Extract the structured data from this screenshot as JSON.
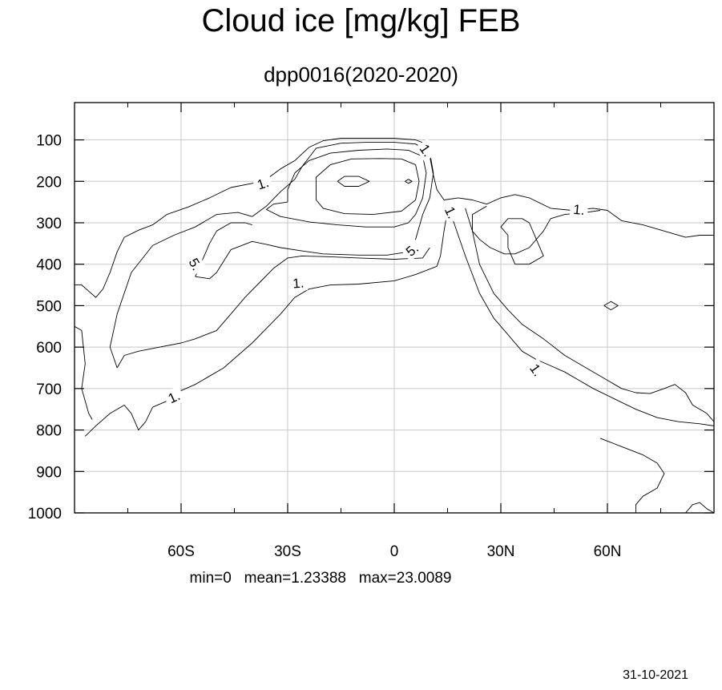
{
  "chart_data": {
    "type": "contour",
    "title": "Cloud ice [mg/kg] FEB",
    "subtitle": "dpp0016(2020-2020)",
    "x_tick_labels": [
      "60S",
      "30S",
      "0",
      "30N",
      "60N"
    ],
    "x_tick_values": [
      -60,
      -30,
      0,
      30,
      60
    ],
    "xlim": [
      -90,
      90
    ],
    "y_tick_labels": [
      "100",
      "200",
      "300",
      "400",
      "500",
      "600",
      "700",
      "800",
      "900",
      "1000"
    ],
    "y_tick_values": [
      100,
      200,
      300,
      400,
      500,
      600,
      700,
      800,
      900,
      1000
    ],
    "ylim": [
      10,
      1000
    ],
    "y_inverted": true,
    "grid": true,
    "contour_levels": [
      1,
      5,
      10,
      15,
      20
    ],
    "contour_labels": [
      {
        "text": "1.",
        "lat": -37,
        "p": 205,
        "angle": -18
      },
      {
        "text": "1.",
        "lat": 9,
        "p": 125,
        "angle": 55
      },
      {
        "text": "1.",
        "lat": 16,
        "p": 275,
        "angle": 65
      },
      {
        "text": "1.",
        "lat": 52,
        "p": 268,
        "angle": 5
      },
      {
        "text": "1.",
        "lat": -27,
        "p": 445,
        "angle": -5
      },
      {
        "text": "1.",
        "lat": -62,
        "p": 720,
        "angle": -25
      },
      {
        "text": "1.",
        "lat": 40,
        "p": 655,
        "angle": 55
      },
      {
        "text": "5.",
        "lat": 5,
        "p": 365,
        "angle": -40
      },
      {
        "text": "5.",
        "lat": -56,
        "p": 400,
        "angle": 60
      }
    ],
    "contours": [
      {
        "level": 1,
        "points": [
          [
            -90,
            450
          ],
          [
            -88,
            450
          ],
          [
            -86,
            465
          ],
          [
            -84,
            480
          ],
          [
            -82,
            460
          ],
          [
            -80,
            420
          ],
          [
            -78,
            370
          ],
          [
            -76,
            335
          ],
          [
            -72,
            318
          ],
          [
            -68,
            305
          ],
          [
            -64,
            280
          ],
          [
            -58,
            262
          ],
          [
            -52,
            240
          ],
          [
            -46,
            215
          ],
          [
            -40,
            205
          ],
          [
            -36,
            195
          ],
          [
            -32,
            170
          ],
          [
            -28,
            150
          ],
          [
            -24,
            118
          ],
          [
            -20,
            102
          ],
          [
            -15,
            96
          ],
          [
            -10,
            96
          ],
          [
            0,
            96
          ],
          [
            6,
            100
          ],
          [
            9,
            110
          ],
          [
            10,
            140
          ],
          [
            11,
            185
          ],
          [
            12,
            220
          ],
          [
            14,
            245
          ],
          [
            18,
            240
          ],
          [
            22,
            245
          ],
          [
            26,
            255
          ],
          [
            30,
            240
          ],
          [
            34,
            232
          ],
          [
            38,
            240
          ],
          [
            44,
            265
          ],
          [
            50,
            270
          ],
          [
            56,
            265
          ],
          [
            60,
            270
          ],
          [
            64,
            295
          ],
          [
            70,
            305
          ],
          [
            76,
            320
          ],
          [
            82,
            335
          ],
          [
            86,
            330
          ],
          [
            90,
            330
          ]
        ]
      },
      {
        "level": 1,
        "points": [
          [
            16,
            280
          ],
          [
            20,
            380
          ],
          [
            24,
            470
          ],
          [
            28,
            530
          ],
          [
            32,
            570
          ],
          [
            36,
            610
          ],
          [
            40,
            630
          ],
          [
            44,
            645
          ],
          [
            48,
            660
          ],
          [
            52,
            680
          ],
          [
            56,
            700
          ],
          [
            62,
            725
          ],
          [
            68,
            750
          ],
          [
            74,
            770
          ],
          [
            80,
            780
          ],
          [
            86,
            785
          ],
          [
            90,
            790
          ]
        ]
      },
      {
        "level": 1,
        "points": [
          [
            -90,
            550
          ],
          [
            -88,
            560
          ],
          [
            -87,
            640
          ],
          [
            -88,
            700
          ],
          [
            -86,
            760
          ],
          [
            -85,
            775
          ]
        ]
      },
      {
        "level": 1,
        "points": [
          [
            -87,
            815
          ],
          [
            -84,
            790
          ],
          [
            -80,
            760
          ],
          [
            -76,
            740
          ],
          [
            -74,
            760
          ],
          [
            -72,
            800
          ],
          [
            -70,
            780
          ],
          [
            -68,
            745
          ],
          [
            -64,
            730
          ],
          [
            -60,
            705
          ],
          [
            -56,
            690
          ],
          [
            -52,
            670
          ],
          [
            -48,
            650
          ],
          [
            -44,
            620
          ],
          [
            -40,
            590
          ],
          [
            -36,
            555
          ],
          [
            -32,
            520
          ],
          [
            -28,
            480
          ],
          [
            -24,
            460
          ],
          [
            -18,
            450
          ],
          [
            -10,
            448
          ],
          [
            0,
            440
          ],
          [
            6,
            425
          ],
          [
            12,
            405
          ],
          [
            13,
            380
          ],
          [
            14,
            320
          ],
          [
            15,
            270
          ]
        ]
      },
      {
        "level": 1,
        "points": [
          [
            20,
            265
          ],
          [
            22,
            320
          ],
          [
            24,
            400
          ],
          [
            28,
            470
          ],
          [
            32,
            510
          ],
          [
            36,
            545
          ],
          [
            42,
            580
          ],
          [
            48,
            620
          ],
          [
            54,
            650
          ],
          [
            60,
            680
          ],
          [
            64,
            700
          ],
          [
            68,
            710
          ],
          [
            72,
            712
          ],
          [
            76,
            700
          ],
          [
            79,
            690
          ],
          [
            82,
            710
          ],
          [
            84,
            740
          ],
          [
            88,
            760
          ],
          [
            90,
            780
          ]
        ]
      },
      {
        "level": 1,
        "points": [
          [
            58,
            820
          ],
          [
            64,
            840
          ],
          [
            70,
            860
          ],
          [
            74,
            880
          ],
          [
            76,
            905
          ],
          [
            74,
            940
          ],
          [
            70,
            960
          ],
          [
            68,
            980
          ],
          [
            68,
            1000
          ]
        ]
      },
      {
        "level": 1,
        "points": [
          [
            82,
            1000
          ],
          [
            84,
            980
          ],
          [
            86,
            975
          ],
          [
            88,
            990
          ],
          [
            90,
            1000
          ]
        ]
      },
      {
        "level": 5,
        "points": [
          [
            -78,
            650
          ],
          [
            -80,
            600
          ],
          [
            -78,
            520
          ],
          [
            -74,
            420
          ],
          [
            -68,
            355
          ],
          [
            -62,
            330
          ],
          [
            -56,
            310
          ],
          [
            -50,
            280
          ],
          [
            -44,
            275
          ],
          [
            -40,
            285
          ],
          [
            -36,
            260
          ],
          [
            -32,
            225
          ],
          [
            -28,
            195
          ],
          [
            -26,
            165
          ],
          [
            -22,
            120
          ],
          [
            -15,
            108
          ],
          [
            -8,
            106
          ],
          [
            0,
            106
          ],
          [
            6,
            110
          ],
          [
            10,
            130
          ],
          [
            11,
            180
          ],
          [
            10,
            240
          ],
          [
            8,
            280
          ],
          [
            6,
            340
          ],
          [
            4,
            370
          ],
          [
            -2,
            378
          ],
          [
            -10,
            378
          ],
          [
            -20,
            375
          ],
          [
            -26,
            368
          ],
          [
            -32,
            360
          ],
          [
            -36,
            352
          ],
          [
            -40,
            345
          ],
          [
            -46,
            365
          ],
          [
            -50,
            420
          ],
          [
            -52,
            435
          ],
          [
            -56,
            430
          ]
        ]
      },
      {
        "level": 5,
        "points": [
          [
            -78,
            650
          ],
          [
            -76,
            620
          ],
          [
            -72,
            610
          ],
          [
            -66,
            600
          ],
          [
            -60,
            590
          ],
          [
            -56,
            580
          ],
          [
            -50,
            560
          ],
          [
            -46,
            520
          ],
          [
            -42,
            480
          ],
          [
            -38,
            445
          ],
          [
            -34,
            410
          ],
          [
            -30,
            385
          ],
          [
            -26,
            380
          ],
          [
            -18,
            382
          ],
          [
            -10,
            385
          ],
          [
            0,
            388
          ],
          [
            8,
            385
          ],
          [
            10,
            360
          ]
        ]
      },
      {
        "level": 5,
        "points": [
          [
            -56,
            430
          ],
          [
            -54,
            390
          ],
          [
            -52,
            350
          ],
          [
            -50,
            320
          ],
          [
            -46,
            300
          ],
          [
            -42,
            300
          ],
          [
            -40,
            305
          ]
        ]
      },
      {
        "level": 5,
        "points": [
          [
            26,
            260
          ],
          [
            22,
            280
          ],
          [
            22,
            320
          ],
          [
            24,
            340
          ],
          [
            27,
            360
          ],
          [
            31,
            375
          ],
          [
            34,
            375
          ],
          [
            38,
            360
          ],
          [
            42,
            320
          ],
          [
            44,
            290
          ],
          [
            48,
            280
          ],
          [
            54,
            275
          ],
          [
            58,
            270
          ]
        ]
      },
      {
        "level": 10,
        "points": [
          [
            -30,
            250
          ],
          [
            -30,
            220
          ],
          [
            -28,
            180
          ],
          [
            -24,
            150
          ],
          [
            -18,
            132
          ],
          [
            -10,
            125
          ],
          [
            -2,
            122
          ],
          [
            4,
            125
          ],
          [
            8,
            140
          ],
          [
            9,
            180
          ],
          [
            8,
            240
          ],
          [
            6,
            280
          ],
          [
            4,
            300
          ],
          [
            0,
            310
          ],
          [
            -8,
            310
          ],
          [
            -16,
            305
          ],
          [
            -24,
            298
          ],
          [
            -32,
            285
          ],
          [
            -36,
            268
          ],
          [
            -34,
            255
          ],
          [
            -30,
            250
          ]
        ]
      },
      {
        "level": 15,
        "points": [
          [
            -22,
            230
          ],
          [
            -22,
            190
          ],
          [
            -18,
            160
          ],
          [
            -12,
            146
          ],
          [
            -4,
            145
          ],
          [
            2,
            146
          ],
          [
            6,
            160
          ],
          [
            7,
            200
          ],
          [
            6,
            245
          ],
          [
            2,
            272
          ],
          [
            -6,
            280
          ],
          [
            -14,
            278
          ],
          [
            -20,
            265
          ],
          [
            -22,
            245
          ],
          [
            -22,
            230
          ]
        ]
      },
      {
        "level": 20,
        "points": [
          [
            -16,
            200
          ],
          [
            -14,
            188
          ],
          [
            -10,
            188
          ],
          [
            -7,
            200
          ],
          [
            -10,
            212
          ],
          [
            -14,
            212
          ],
          [
            -16,
            200
          ]
        ]
      },
      {
        "level": 20,
        "points": [
          [
            3,
            200
          ],
          [
            4,
            195
          ],
          [
            5,
            200
          ],
          [
            4,
            205
          ],
          [
            3,
            200
          ]
        ]
      },
      {
        "level": 5,
        "points": [
          [
            32,
            330
          ],
          [
            30,
            310
          ],
          [
            32,
            290
          ],
          [
            36,
            290
          ],
          [
            38,
            300
          ],
          [
            42,
            380
          ],
          [
            38,
            400
          ],
          [
            34,
            400
          ],
          [
            32,
            360
          ],
          [
            32,
            330
          ]
        ]
      },
      {
        "level": 1,
        "points": [
          [
            59,
            500
          ],
          [
            61,
            490
          ],
          [
            63,
            500
          ],
          [
            61,
            510
          ],
          [
            59,
            500
          ]
        ]
      }
    ]
  },
  "footer": {
    "stats": "min=0   mean=1.23388   max=23.0089",
    "date": "31-10-2021"
  }
}
